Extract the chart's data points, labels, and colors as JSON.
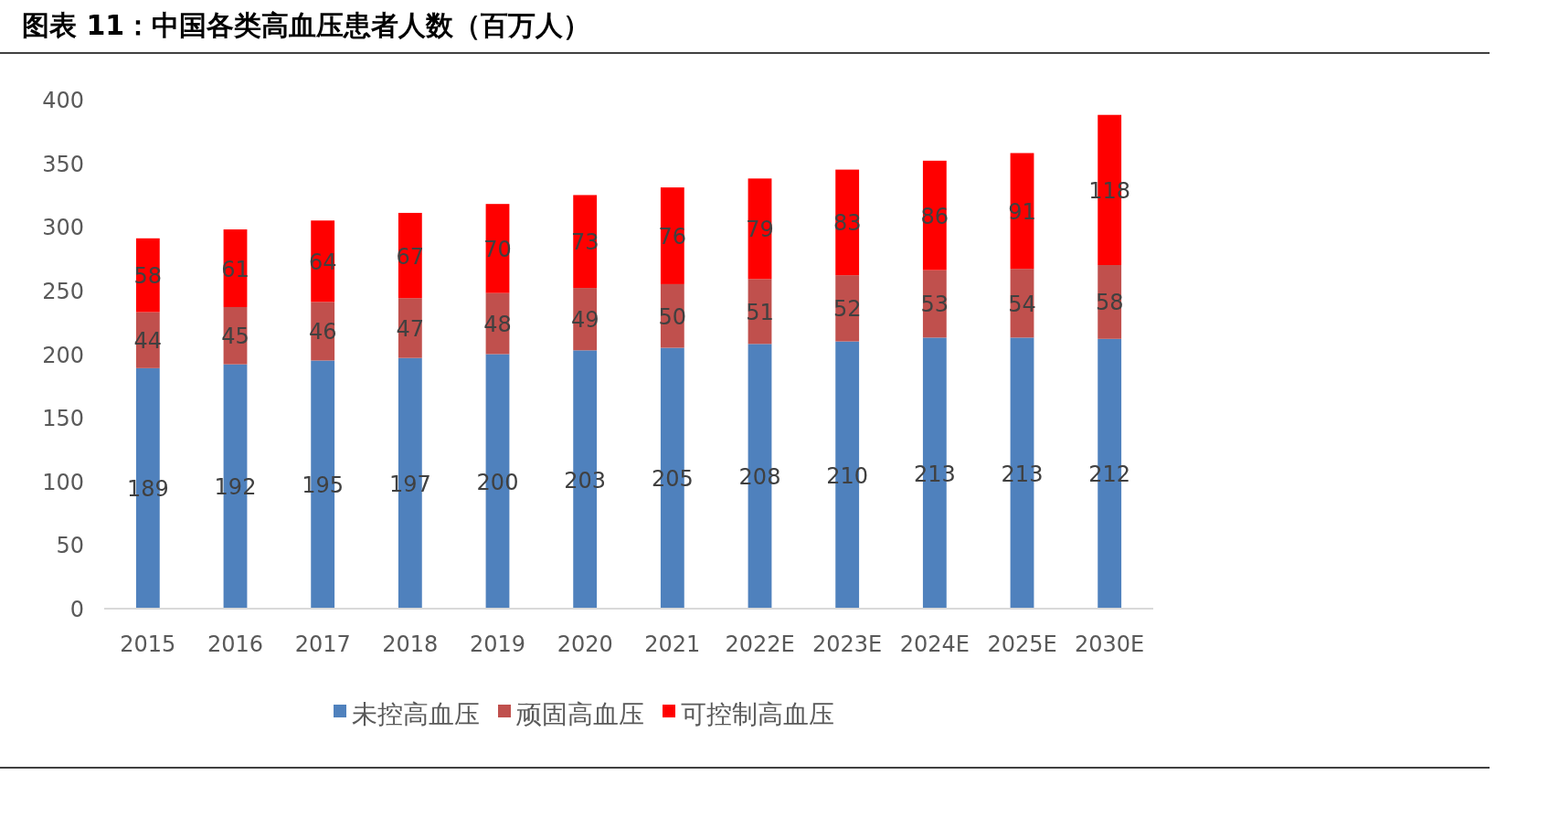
{
  "chart_data": {
    "type": "bar",
    "title": "图表 11：中国各类高血压患者人数（百万人）",
    "categories": [
      "2015",
      "2016",
      "2017",
      "2018",
      "2019",
      "2020",
      "2021",
      "2022E",
      "2023E",
      "2024E",
      "2025E",
      "2030E"
    ],
    "series": [
      {
        "name": "未控高血压",
        "color": "#4f81bd",
        "values": [
          189,
          192,
          195,
          197,
          200,
          203,
          205,
          208,
          210,
          213,
          213,
          212
        ]
      },
      {
        "name": "顽固高血压",
        "color": "#c0504d",
        "values": [
          44,
          45,
          46,
          47,
          48,
          49,
          50,
          51,
          52,
          53,
          54,
          58
        ]
      },
      {
        "name": "可控制高血压",
        "color": "#ff0000",
        "values": [
          58,
          61,
          64,
          67,
          70,
          73,
          76,
          79,
          83,
          86,
          91,
          118
        ]
      }
    ],
    "stacked": true,
    "data_labels": true,
    "ylim": [
      0,
      400
    ],
    "yticks": [
      0,
      50,
      100,
      150,
      200,
      250,
      300,
      350,
      400
    ],
    "grid": false,
    "legend": "bottom"
  }
}
